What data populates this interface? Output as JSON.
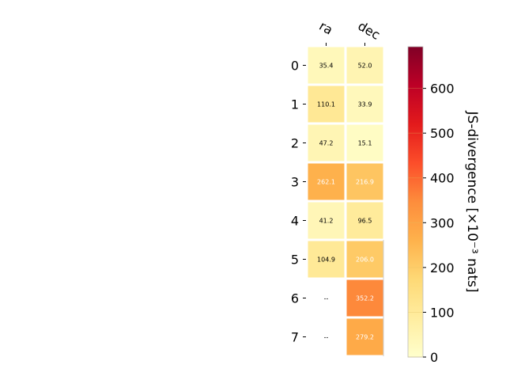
{
  "chart_data": {
    "type": "heatmap",
    "x_categories": [
      "ra",
      "dec"
    ],
    "y_categories": [
      "0",
      "1",
      "2",
      "3",
      "4",
      "5",
      "6",
      "7"
    ],
    "values": [
      [
        35.4,
        52.0
      ],
      [
        110.1,
        33.9
      ],
      [
        47.2,
        15.1
      ],
      [
        262.1,
        216.9
      ],
      [
        41.2,
        96.5
      ],
      [
        104.9,
        206.0
      ],
      [
        null,
        352.2
      ],
      [
        null,
        279.2
      ]
    ],
    "cell_labels": [
      [
        "35.4",
        "52.0"
      ],
      [
        "110.1",
        "33.9"
      ],
      [
        "47.2",
        "15.1"
      ],
      [
        "262.1",
        "216.9"
      ],
      [
        "41.2",
        "96.5"
      ],
      [
        "104.9",
        "206.0"
      ],
      [
        "--",
        "352.2"
      ],
      [
        "--",
        "279.2"
      ]
    ],
    "colorbar": {
      "label": "JS-divergence [×10⁻³ nats]",
      "range": [
        0,
        693
      ],
      "ticks": [
        0,
        100,
        200,
        300,
        400,
        500,
        600
      ],
      "tick_labels": [
        "0",
        "100",
        "200",
        "300",
        "400",
        "500",
        "600"
      ],
      "colormap": "YlOrRd"
    },
    "grid": false
  }
}
